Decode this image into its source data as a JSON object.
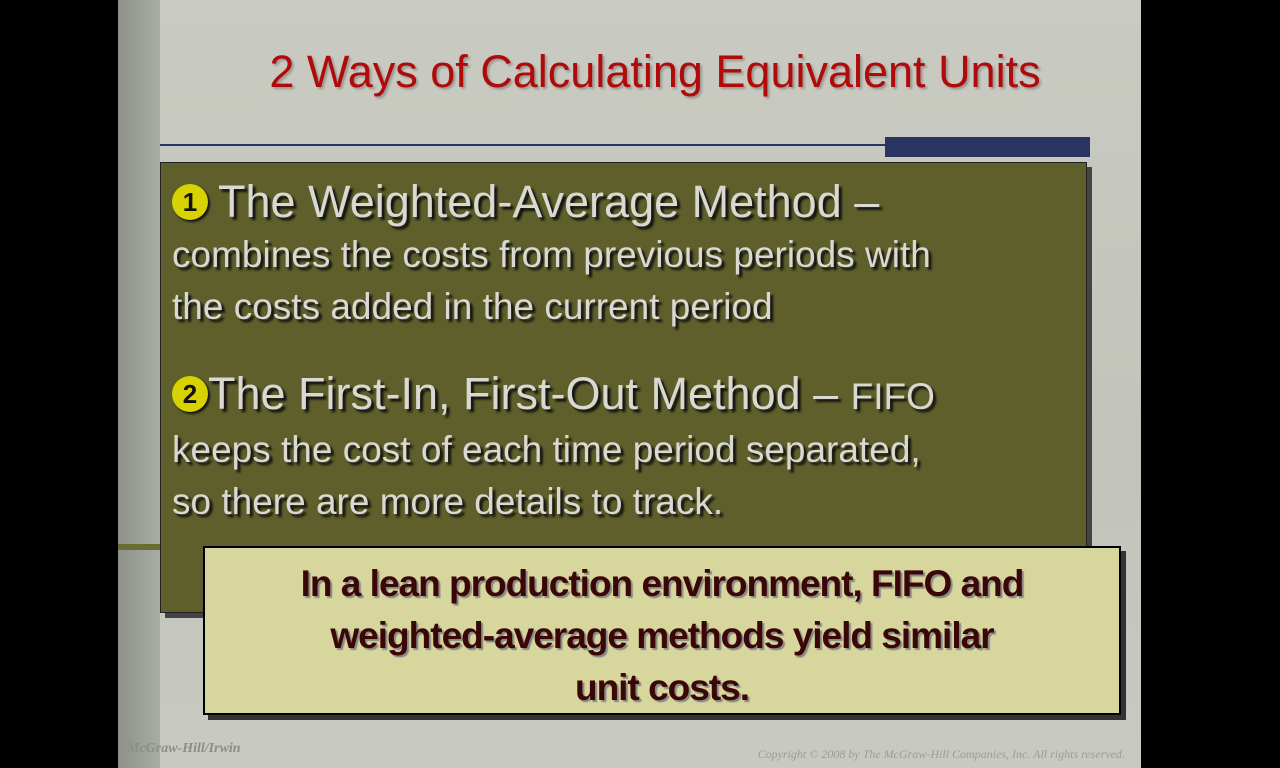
{
  "slide": {
    "title": "2 Ways of Calculating Equivalent Units",
    "items": [
      {
        "number": "1",
        "heading": "The Weighted-Average Method –",
        "body_lines": [
          "combines the costs from previous periods with",
          "the costs added in the current period"
        ]
      },
      {
        "number": "2",
        "heading": "The First-In, First-Out Method – ",
        "heading_suffix": "FIFO",
        "body_lines": [
          "keeps the cost of each time period separated,",
          "so there are more details to track."
        ]
      }
    ],
    "note_lines": [
      "In a lean production environment, FIFO and",
      "weighted-average methods yield similar",
      "unit costs."
    ],
    "footer_left": "McGraw-Hill/Irwin",
    "footer_right": "Copyright © 2008 by The McGraw-Hill Companies, Inc. All rights reserved."
  },
  "colors": {
    "title": "#b00a0a",
    "content_box": "#5e5f2a",
    "note_box": "#d7d69c",
    "note_text": "#3a0606",
    "bullet": "#d8d200",
    "accent_bar": "#2a3462"
  }
}
